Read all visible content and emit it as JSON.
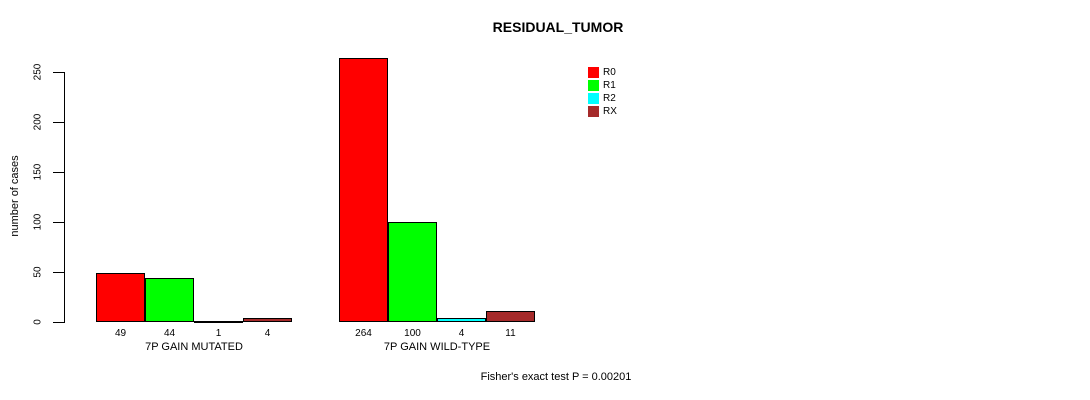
{
  "figure": {
    "title": "RESIDUAL_TUMOR",
    "annotation": "Fisher's exact test P = 0.00201"
  },
  "chart_data": {
    "type": "bar",
    "title": "RESIDUAL_TUMOR",
    "xlabel": "",
    "ylabel": "number of cases",
    "ylim": [
      0,
      250
    ],
    "yticks": [
      0,
      50,
      100,
      150,
      200,
      250
    ],
    "grid": false,
    "bar_value_labels": true,
    "legend_position": "top-right-inside",
    "categories": [
      "7P GAIN MUTATED",
      "7P GAIN WILD-TYPE"
    ],
    "series": [
      {
        "name": "R0",
        "color": "#ff0000",
        "values": [
          49,
          264
        ]
      },
      {
        "name": "R1",
        "color": "#00ff00",
        "values": [
          44,
          100
        ]
      },
      {
        "name": "R2",
        "color": "#00ffff",
        "values": [
          1,
          4
        ]
      },
      {
        "name": "RX",
        "color": "#a52a2a",
        "values": [
          4,
          11
        ]
      }
    ],
    "annotation": "Fisher's exact test P = 0.00201"
  },
  "colors": {
    "background": "#ffffff",
    "axis": "#000000",
    "text": "#000000"
  }
}
